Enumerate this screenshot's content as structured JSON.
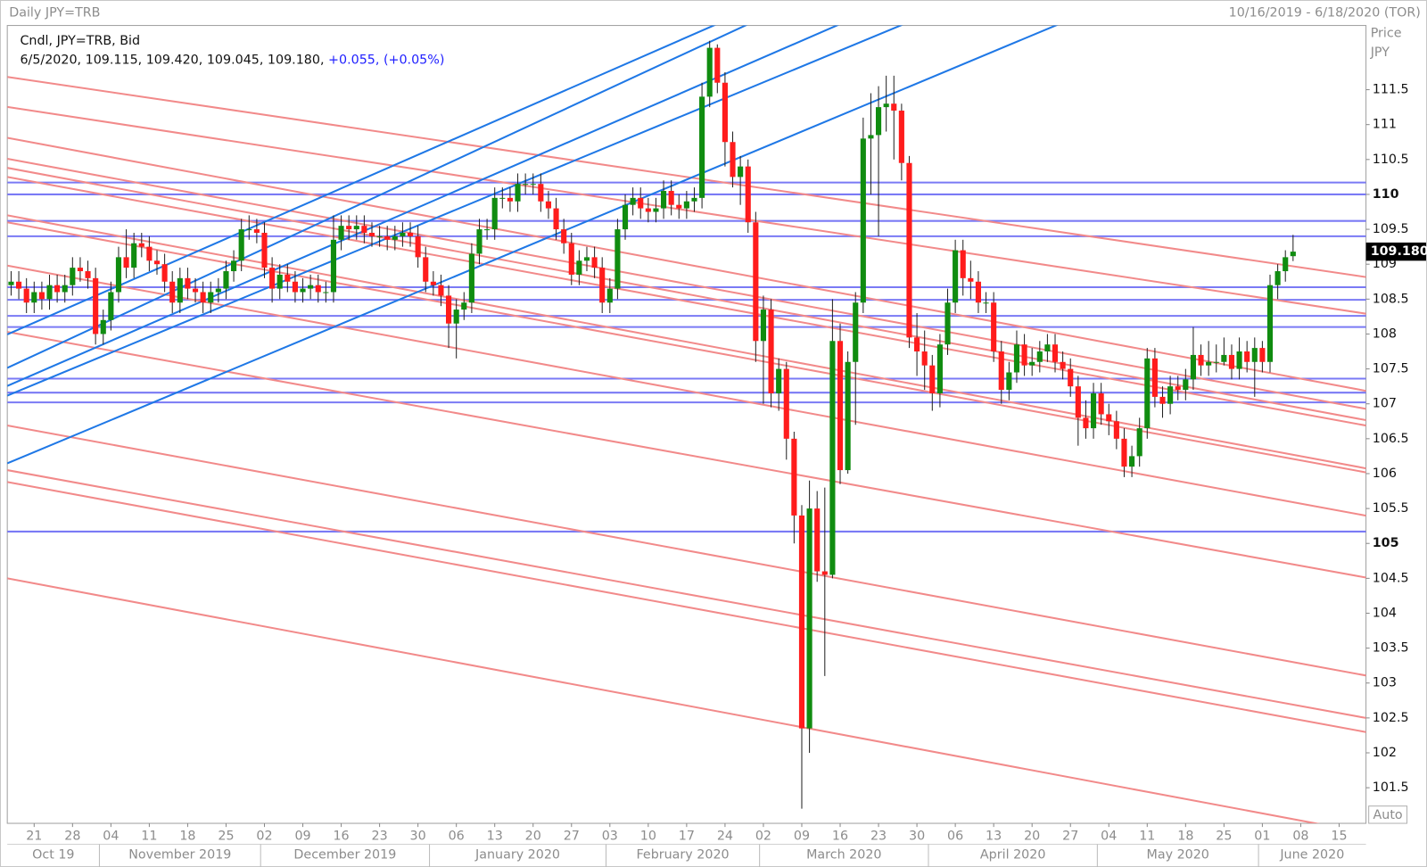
{
  "chart_data": {
    "type": "candlestick",
    "title": "Daily JPY=TRB",
    "date_range": "10/16/2019 - 6/18/2020 (TOR)",
    "legend_line1": "Cndl, JPY=TRB, Bid",
    "legend_line2": "6/5/2020, 109.115, 109.420, 109.045, 109.180,",
    "legend_change": "+0.055, (+0.05%)",
    "y_axis_label": [
      "Price",
      "JPY"
    ],
    "auto_button": "Auto",
    "up_color": "#108c10",
    "down_color": "#ff1c1c",
    "wick_color": "#222222",
    "change_color": "#2020ff",
    "x": [
      "2019-10-16",
      "2019-10-17",
      "2019-10-18",
      "2019-10-21",
      "2019-10-22",
      "2019-10-23",
      "2019-10-24",
      "2019-10-25",
      "2019-10-28",
      "2019-10-29",
      "2019-10-30",
      "2019-10-31",
      "2019-11-01",
      "2019-11-04",
      "2019-11-05",
      "2019-11-06",
      "2019-11-07",
      "2019-11-08",
      "2019-11-11",
      "2019-11-12",
      "2019-11-13",
      "2019-11-14",
      "2019-11-15",
      "2019-11-18",
      "2019-11-19",
      "2019-11-20",
      "2019-11-21",
      "2019-11-22",
      "2019-11-25",
      "2019-11-26",
      "2019-11-27",
      "2019-11-28",
      "2019-11-29",
      "2019-12-02",
      "2019-12-03",
      "2019-12-04",
      "2019-12-05",
      "2019-12-06",
      "2019-12-09",
      "2019-12-10",
      "2019-12-11",
      "2019-12-12",
      "2019-12-13",
      "2019-12-16",
      "2019-12-17",
      "2019-12-18",
      "2019-12-19",
      "2019-12-20",
      "2019-12-23",
      "2019-12-24",
      "2019-12-25",
      "2019-12-26",
      "2019-12-27",
      "2019-12-30",
      "2019-12-31",
      "2020-01-01",
      "2020-01-02",
      "2020-01-03",
      "2020-01-06",
      "2020-01-07",
      "2020-01-08",
      "2020-01-09",
      "2020-01-10",
      "2020-01-13",
      "2020-01-14",
      "2020-01-15",
      "2020-01-16",
      "2020-01-17",
      "2020-01-20",
      "2020-01-21",
      "2020-01-22",
      "2020-01-23",
      "2020-01-24",
      "2020-01-27",
      "2020-01-28",
      "2020-01-29",
      "2020-01-30",
      "2020-01-31",
      "2020-02-03",
      "2020-02-04",
      "2020-02-05",
      "2020-02-06",
      "2020-02-07",
      "2020-02-10",
      "2020-02-11",
      "2020-02-12",
      "2020-02-13",
      "2020-02-14",
      "2020-02-17",
      "2020-02-18",
      "2020-02-19",
      "2020-02-20",
      "2020-02-21",
      "2020-02-24",
      "2020-02-25",
      "2020-02-26",
      "2020-02-27",
      "2020-02-28",
      "2020-03-02",
      "2020-03-03",
      "2020-03-04",
      "2020-03-05",
      "2020-03-06",
      "2020-03-09",
      "2020-03-10",
      "2020-03-11",
      "2020-03-12",
      "2020-03-13",
      "2020-03-16",
      "2020-03-17",
      "2020-03-18",
      "2020-03-19",
      "2020-03-20",
      "2020-03-23",
      "2020-03-24",
      "2020-03-25",
      "2020-03-26",
      "2020-03-27",
      "2020-03-30",
      "2020-03-31",
      "2020-04-01",
      "2020-04-02",
      "2020-04-03",
      "2020-04-06",
      "2020-04-07",
      "2020-04-08",
      "2020-04-09",
      "2020-04-10",
      "2020-04-13",
      "2020-04-14",
      "2020-04-15",
      "2020-04-16",
      "2020-04-17",
      "2020-04-20",
      "2020-04-21",
      "2020-04-22",
      "2020-04-23",
      "2020-04-24",
      "2020-04-27",
      "2020-04-28",
      "2020-04-29",
      "2020-04-30",
      "2020-05-01",
      "2020-05-04",
      "2020-05-05",
      "2020-05-06",
      "2020-05-07",
      "2020-05-08",
      "2020-05-11",
      "2020-05-12",
      "2020-05-13",
      "2020-05-14",
      "2020-05-15",
      "2020-05-18",
      "2020-05-19",
      "2020-05-20",
      "2020-05-21",
      "2020-05-22",
      "2020-05-25",
      "2020-05-26",
      "2020-05-27",
      "2020-05-28",
      "2020-05-29",
      "2020-06-01",
      "2020-06-02",
      "2020-06-03",
      "2020-06-04",
      "2020-06-05"
    ],
    "open": [
      108.7,
      108.75,
      108.65,
      108.45,
      108.6,
      108.5,
      108.7,
      108.6,
      108.7,
      108.95,
      108.9,
      108.8,
      108.0,
      108.2,
      108.6,
      109.1,
      108.95,
      109.3,
      109.25,
      109.05,
      109.0,
      108.75,
      108.45,
      108.8,
      108.65,
      108.6,
      108.45,
      108.6,
      108.65,
      108.9,
      109.05,
      109.5,
      109.5,
      109.45,
      108.95,
      108.65,
      108.85,
      108.75,
      108.6,
      108.65,
      108.7,
      108.6,
      108.6,
      109.35,
      109.55,
      109.5,
      109.55,
      109.45,
      109.4,
      109.4,
      109.35,
      109.4,
      109.45,
      109.4,
      109.1,
      108.75,
      108.7,
      108.55,
      108.15,
      108.35,
      108.45,
      109.15,
      109.5,
      109.5,
      109.95,
      109.95,
      109.9,
      110.15,
      110.15,
      110.15,
      109.9,
      109.8,
      109.5,
      109.3,
      108.85,
      109.05,
      109.1,
      108.95,
      108.45,
      108.65,
      109.5,
      109.85,
      109.95,
      109.8,
      109.75,
      109.8,
      110.05,
      109.85,
      109.8,
      109.9,
      109.95,
      111.4,
      112.1,
      111.6,
      110.75,
      110.25,
      110.4,
      109.6,
      107.9,
      108.35,
      107.15,
      107.5,
      106.5,
      105.4,
      102.35,
      105.5,
      104.6,
      104.55,
      107.9,
      106.05,
      107.6,
      108.45,
      110.8,
      110.85,
      111.25,
      111.3,
      111.2,
      110.45,
      107.95,
      107.75,
      107.55,
      107.15,
      107.85,
      108.45,
      109.2,
      108.8,
      108.75,
      108.45,
      108.45,
      107.75,
      107.2,
      107.45,
      107.85,
      107.55,
      107.6,
      107.75,
      107.85,
      107.6,
      107.5,
      107.25,
      106.8,
      106.65,
      107.15,
      106.85,
      106.75,
      106.5,
      106.1,
      106.25,
      106.65,
      107.65,
      107.1,
      107.0,
      107.25,
      107.2,
      107.35,
      107.7,
      107.55,
      107.6,
      107.6,
      107.7,
      107.5,
      107.75,
      107.6,
      107.8,
      107.6,
      108.7,
      108.9,
      109.115
    ],
    "high": [
      108.9,
      108.9,
      108.8,
      108.75,
      108.75,
      108.85,
      108.85,
      108.85,
      109.1,
      109.1,
      109.05,
      108.95,
      108.35,
      108.75,
      109.25,
      109.5,
      109.45,
      109.45,
      109.4,
      109.2,
      109.15,
      108.9,
      108.95,
      108.95,
      108.8,
      108.75,
      108.75,
      108.8,
      109.05,
      109.2,
      109.65,
      109.7,
      109.65,
      109.6,
      109.1,
      109.0,
      109.0,
      108.9,
      108.8,
      108.85,
      108.85,
      108.75,
      109.7,
      109.7,
      109.7,
      109.7,
      109.7,
      109.6,
      109.55,
      109.55,
      109.55,
      109.6,
      109.6,
      109.55,
      109.25,
      108.9,
      108.85,
      108.7,
      108.5,
      108.6,
      109.3,
      109.65,
      109.65,
      110.1,
      110.1,
      110.1,
      110.3,
      110.3,
      110.3,
      110.3,
      110.05,
      109.95,
      109.65,
      109.45,
      109.2,
      109.25,
      109.25,
      109.1,
      108.8,
      109.65,
      110.0,
      110.1,
      110.1,
      109.95,
      109.95,
      110.2,
      110.2,
      110.0,
      110.05,
      110.1,
      111.6,
      112.2,
      112.15,
      111.75,
      110.9,
      110.55,
      110.5,
      109.75,
      108.55,
      108.5,
      107.65,
      107.6,
      106.6,
      105.55,
      105.9,
      105.75,
      105.8,
      108.5,
      108.15,
      107.75,
      108.6,
      111.1,
      111.45,
      111.55,
      111.7,
      111.7,
      111.3,
      110.55,
      108.3,
      108.05,
      107.7,
      108.0,
      108.65,
      109.35,
      109.35,
      109.05,
      108.9,
      108.6,
      108.6,
      107.9,
      107.6,
      108.05,
      108.0,
      107.8,
      107.9,
      108.0,
      108.0,
      107.75,
      107.65,
      107.4,
      107.05,
      107.3,
      107.3,
      107.0,
      106.9,
      106.65,
      106.4,
      106.8,
      107.8,
      107.8,
      107.25,
      107.4,
      107.4,
      107.5,
      108.1,
      107.85,
      107.9,
      107.85,
      107.95,
      107.85,
      107.95,
      107.9,
      107.95,
      107.9,
      108.85,
      109.0,
      109.2,
      109.42
    ],
    "low": [
      108.55,
      108.5,
      108.3,
      108.3,
      108.35,
      108.35,
      108.45,
      108.45,
      108.55,
      108.75,
      108.65,
      107.85,
      107.85,
      108.05,
      108.45,
      108.8,
      108.8,
      109.1,
      108.9,
      108.85,
      108.6,
      108.3,
      108.3,
      108.5,
      108.45,
      108.3,
      108.3,
      108.45,
      108.5,
      108.75,
      108.9,
      109.35,
      109.3,
      108.8,
      108.45,
      108.5,
      108.6,
      108.45,
      108.45,
      108.5,
      108.45,
      108.45,
      108.45,
      109.2,
      109.35,
      109.35,
      109.3,
      109.25,
      109.25,
      109.2,
      109.2,
      109.25,
      109.25,
      108.95,
      108.6,
      108.55,
      108.4,
      107.8,
      107.65,
      108.2,
      108.3,
      109.0,
      109.35,
      109.35,
      109.8,
      109.75,
      109.75,
      110.0,
      110.0,
      109.75,
      109.65,
      109.35,
      109.15,
      108.7,
      108.7,
      108.9,
      108.8,
      108.3,
      108.3,
      108.5,
      109.35,
      109.7,
      109.65,
      109.6,
      109.6,
      109.65,
      109.7,
      109.65,
      109.65,
      109.75,
      109.8,
      111.25,
      111.45,
      110.4,
      110.1,
      109.85,
      109.45,
      107.6,
      107.0,
      106.95,
      106.9,
      106.2,
      105.0,
      101.2,
      102.0,
      104.45,
      103.1,
      104.5,
      105.85,
      106.0,
      106.7,
      108.3,
      110.0,
      109.4,
      110.9,
      110.5,
      110.2,
      107.8,
      107.4,
      107.2,
      106.9,
      106.95,
      107.7,
      108.3,
      108.55,
      108.5,
      108.3,
      108.3,
      107.6,
      107.0,
      107.05,
      107.3,
      107.4,
      107.4,
      107.45,
      107.6,
      107.45,
      107.35,
      107.1,
      106.4,
      106.5,
      106.5,
      106.7,
      106.55,
      106.35,
      105.95,
      105.95,
      106.1,
      106.5,
      106.95,
      106.8,
      106.85,
      107.05,
      107.05,
      107.2,
      107.4,
      107.4,
      107.45,
      107.55,
      107.35,
      107.35,
      107.45,
      107.1,
      107.45,
      107.45,
      108.5,
      108.75,
      109.045
    ],
    "close": [
      108.75,
      108.65,
      108.45,
      108.6,
      108.5,
      108.7,
      108.6,
      108.7,
      108.95,
      108.9,
      108.8,
      108.0,
      108.2,
      108.6,
      109.1,
      108.95,
      109.3,
      109.25,
      109.05,
      109.0,
      108.75,
      108.45,
      108.8,
      108.65,
      108.6,
      108.45,
      108.6,
      108.65,
      108.9,
      109.05,
      109.5,
      109.5,
      109.45,
      108.95,
      108.65,
      108.85,
      108.75,
      108.6,
      108.65,
      108.7,
      108.6,
      108.6,
      109.35,
      109.55,
      109.5,
      109.55,
      109.45,
      109.4,
      109.4,
      109.35,
      109.4,
      109.45,
      109.4,
      109.1,
      108.75,
      108.7,
      108.55,
      108.15,
      108.35,
      108.45,
      109.15,
      109.5,
      109.5,
      109.95,
      109.95,
      109.9,
      110.15,
      110.15,
      110.15,
      109.9,
      109.8,
      109.5,
      109.3,
      108.85,
      109.05,
      109.1,
      108.95,
      108.45,
      108.65,
      109.5,
      109.85,
      109.95,
      109.8,
      109.75,
      109.8,
      110.05,
      109.85,
      109.8,
      109.9,
      109.95,
      111.4,
      112.1,
      111.6,
      110.75,
      110.25,
      110.4,
      109.6,
      107.9,
      108.35,
      107.15,
      107.5,
      106.5,
      105.4,
      102.35,
      105.5,
      104.6,
      104.55,
      107.9,
      106.05,
      107.6,
      108.45,
      110.8,
      110.85,
      111.25,
      111.3,
      111.2,
      110.45,
      107.95,
      107.75,
      107.55,
      107.15,
      107.85,
      108.45,
      109.2,
      108.8,
      108.75,
      108.45,
      108.45,
      107.75,
      107.2,
      107.45,
      107.85,
      107.55,
      107.6,
      107.75,
      107.85,
      107.6,
      107.5,
      107.25,
      106.8,
      106.65,
      107.15,
      106.85,
      106.75,
      106.5,
      106.1,
      106.25,
      106.65,
      107.65,
      107.1,
      107.0,
      107.25,
      107.2,
      107.35,
      107.7,
      107.55,
      107.6,
      107.6,
      107.7,
      107.5,
      107.75,
      107.6,
      107.8,
      107.6,
      108.7,
      108.9,
      109.1,
      109.18
    ],
    "xlim": [
      "2019-10-16",
      "2020-06-18"
    ],
    "xticks": [
      {
        "value": "2019-10-21",
        "label": "21"
      },
      {
        "value": "2019-10-28",
        "label": "28"
      },
      {
        "value": "2019-11-04",
        "label": "04"
      },
      {
        "value": "2019-11-11",
        "label": "11"
      },
      {
        "value": "2019-11-18",
        "label": "18"
      },
      {
        "value": "2019-11-25",
        "label": "25"
      },
      {
        "value": "2019-12-02",
        "label": "02"
      },
      {
        "value": "2019-12-09",
        "label": "09"
      },
      {
        "value": "2019-12-16",
        "label": "16"
      },
      {
        "value": "2019-12-23",
        "label": "23"
      },
      {
        "value": "2019-12-30",
        "label": "30"
      },
      {
        "value": "2020-01-06",
        "label": "06"
      },
      {
        "value": "2020-01-13",
        "label": "13"
      },
      {
        "value": "2020-01-20",
        "label": "20"
      },
      {
        "value": "2020-01-27",
        "label": "27"
      },
      {
        "value": "2020-02-03",
        "label": "03"
      },
      {
        "value": "2020-02-10",
        "label": "10"
      },
      {
        "value": "2020-02-17",
        "label": "17"
      },
      {
        "value": "2020-02-24",
        "label": "24"
      },
      {
        "value": "2020-03-02",
        "label": "02"
      },
      {
        "value": "2020-03-09",
        "label": "09"
      },
      {
        "value": "2020-03-16",
        "label": "16"
      },
      {
        "value": "2020-03-23",
        "label": "23"
      },
      {
        "value": "2020-03-30",
        "label": "30"
      },
      {
        "value": "2020-04-06",
        "label": "06"
      },
      {
        "value": "2020-04-13",
        "label": "13"
      },
      {
        "value": "2020-04-20",
        "label": "20"
      },
      {
        "value": "2020-04-27",
        "label": "27"
      },
      {
        "value": "2020-05-04",
        "label": "04"
      },
      {
        "value": "2020-05-11",
        "label": "11"
      },
      {
        "value": "2020-05-18",
        "label": "18"
      },
      {
        "value": "2020-05-25",
        "label": "25"
      },
      {
        "value": "2020-06-01",
        "label": "01"
      },
      {
        "value": "2020-06-08",
        "label": "08"
      },
      {
        "value": "2020-06-15",
        "label": "15"
      }
    ],
    "xmonths": [
      {
        "value": "2019-10",
        "label": "Oct 19"
      },
      {
        "value": "2019-11",
        "label": "November 2019"
      },
      {
        "value": "2019-12",
        "label": "December 2019"
      },
      {
        "value": "2020-01",
        "label": "January 2020"
      },
      {
        "value": "2020-02",
        "label": "February 2020"
      },
      {
        "value": "2020-03",
        "label": "March 2020"
      },
      {
        "value": "2020-04",
        "label": "April 2020"
      },
      {
        "value": "2020-05",
        "label": "May 2020"
      },
      {
        "value": "2020-06",
        "label": "June 2020"
      }
    ],
    "ylim": [
      100.99,
      112.42
    ],
    "yticks": [
      101.5,
      102,
      102.5,
      103,
      103.5,
      104,
      104.5,
      105,
      105.5,
      106,
      106.5,
      107,
      107.5,
      108,
      108.5,
      109,
      109.5,
      110,
      110.5,
      111,
      111.5
    ],
    "last_price": {
      "value": 109.18,
      "label": "109.180"
    },
    "hlines": {
      "color": "#7a7af5",
      "values": [
        110.17,
        110.0,
        109.62,
        109.4,
        108.67,
        108.49,
        108.26,
        108.1,
        107.36,
        107.16,
        107.02,
        105.17
      ]
    },
    "trend_anchor_dates": [
      "2019-10-16",
      "2020-06-05"
    ],
    "trend_groups": [
      {
        "color": "#f28a8a",
        "lines": [
          [
            111.675,
            108.97
          ],
          [
            111.245,
            108.45
          ],
          [
            110.8,
            107.38
          ],
          [
            110.5,
            107.12
          ],
          [
            110.37,
            106.96
          ],
          [
            110.24,
            106.88
          ],
          [
            109.69,
            106.27
          ],
          [
            109.59,
            106.21
          ],
          [
            108.97,
            105.59
          ],
          [
            108.02,
            104.7
          ],
          [
            106.68,
            103.3
          ],
          [
            106.04,
            102.69
          ],
          [
            105.87,
            102.49
          ],
          [
            104.49,
            101.05
          ]
        ]
      },
      {
        "color": "#1f78e6",
        "lines": [
          [
            108.018,
            116.05
          ],
          [
            107.54,
            116.06
          ],
          [
            107.28,
            115.26
          ],
          [
            107.14,
            114.75
          ],
          [
            106.17,
            113.84
          ]
        ]
      }
    ]
  }
}
